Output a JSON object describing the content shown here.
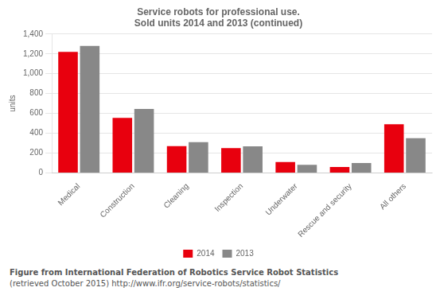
{
  "chart_data": {
    "type": "bar",
    "title": [
      "Service robots for professional use.",
      "Sold units 2014 and 2013 (continued)"
    ],
    "y_label": "units",
    "categories": [
      "Medical",
      "Construction",
      "Cleaning",
      "Inspection",
      "Underwater",
      "Rescue and security",
      "All others"
    ],
    "series": [
      {
        "name": "2014",
        "color": "#e8000e",
        "values": [
          1220,
          555,
          270,
          250,
          110,
          60,
          490
        ]
      },
      {
        "name": "2013",
        "color": "#888888",
        "values": [
          1280,
          645,
          310,
          268,
          82,
          100,
          350
        ]
      }
    ],
    "ylim": [
      0,
      1400
    ],
    "yticks": [
      0,
      200,
      400,
      600,
      800,
      {
        "value": 1000,
        "label": "1,000"
      },
      {
        "value": 1200,
        "label": "1,200"
      },
      {
        "value": 1400,
        "label": "1,400"
      }
    ],
    "grid": true,
    "legend": "bottom",
    "annotations": [
      "Figure from International Federation of Robotics Service Robot Statistics",
      "(retrieved October 2015) http://www.ifr.org/service-robots/statistics/"
    ]
  }
}
